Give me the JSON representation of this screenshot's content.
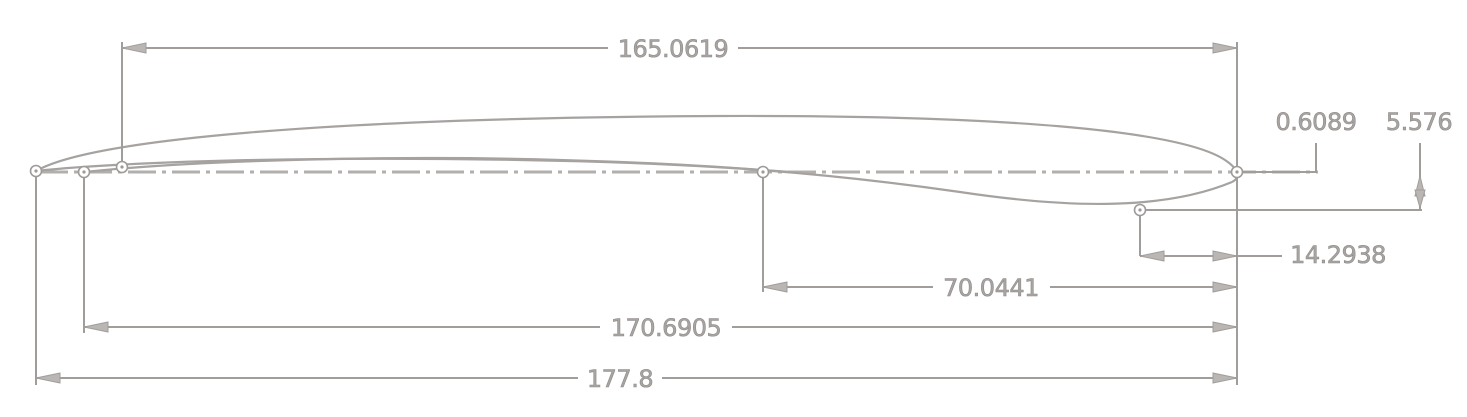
{
  "dimensions": {
    "top_span": "165.0619",
    "trailing_offset": "0.6089",
    "thickness_offset": "5.576",
    "aft_point": "14.2938",
    "mid_span": "70.0441",
    "inner_span": "170.6905",
    "overall_length": "177.8"
  },
  "colors": {
    "line": "#a19d9b",
    "text": "#a8a4a2",
    "background": "#ffffff"
  }
}
